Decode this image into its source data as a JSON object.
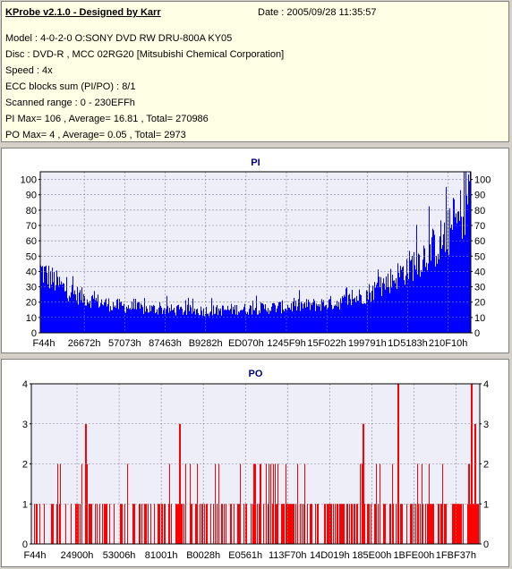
{
  "header": {
    "title": "KProbe v2.1.0 - Designed by Karr",
    "date": "Date : 2005/09/28 11:35:57",
    "lines": [
      "Model : 4-0-2-0 O:SONY    DVD RW DRU-800A  KY05",
      "Disc : DVD-R , MCC 02RG20  [Mitsubishi Chemical Corporation]",
      "Speed : 4x",
      "ECC blocks sum (PI/PO) : 8/1",
      "Scanned range : 0 - 230EFFh",
      "PI Max= 106 , Average= 16.81 , Total= 270986",
      "PO Max= 4 , Average= 0.05 , Total= 2973"
    ]
  },
  "chart_data": [
    {
      "type": "bar",
      "title": "PI",
      "ylim": [
        0,
        105
      ],
      "yticks": [
        0,
        10,
        20,
        30,
        40,
        50,
        60,
        70,
        80,
        90,
        100
      ],
      "xticks": [
        "F44h",
        "26672h",
        "57073h",
        "87463h",
        "B9282h",
        "ED070h",
        "1245F9h",
        "15F022h",
        "199791h",
        "1D5183h",
        "210F10h"
      ],
      "color": "#0000ff",
      "profile": [
        [
          0,
          42
        ],
        [
          5,
          36
        ],
        [
          10,
          30
        ],
        [
          15,
          26
        ],
        [
          20,
          23
        ],
        [
          25,
          21
        ],
        [
          30,
          19
        ],
        [
          35,
          18
        ],
        [
          40,
          17
        ],
        [
          45,
          16
        ],
        [
          50,
          16
        ],
        [
          55,
          15.5
        ],
        [
          60,
          15
        ],
        [
          65,
          15
        ],
        [
          70,
          15
        ],
        [
          75,
          15
        ],
        [
          80,
          15.5
        ],
        [
          85,
          16
        ],
        [
          90,
          16
        ],
        [
          95,
          16.5
        ],
        [
          100,
          17
        ],
        [
          105,
          17.5
        ],
        [
          110,
          18
        ],
        [
          115,
          18.5
        ],
        [
          120,
          19
        ],
        [
          125,
          20
        ],
        [
          130,
          21
        ],
        [
          135,
          23
        ],
        [
          140,
          26
        ],
        [
          145,
          30
        ],
        [
          150,
          35
        ],
        [
          155,
          40
        ],
        [
          160,
          46
        ],
        [
          165,
          52
        ],
        [
          170,
          58
        ],
        [
          175,
          66
        ],
        [
          180,
          76
        ],
        [
          182,
          84
        ],
        [
          184,
          96
        ],
        [
          185,
          104
        ]
      ]
    },
    {
      "type": "bar",
      "title": "PO",
      "ylim": [
        0,
        4
      ],
      "yticks": [
        0,
        1,
        2,
        3,
        4
      ],
      "xticks": [
        "F44h",
        "24900h",
        "53006h",
        "81001h",
        "B0028h",
        "E0561h",
        "113F70h",
        "14D019h",
        "185E00h",
        "1BFE00h",
        "1FBF37h"
      ],
      "color": "#ff0000",
      "max": 4
    }
  ]
}
